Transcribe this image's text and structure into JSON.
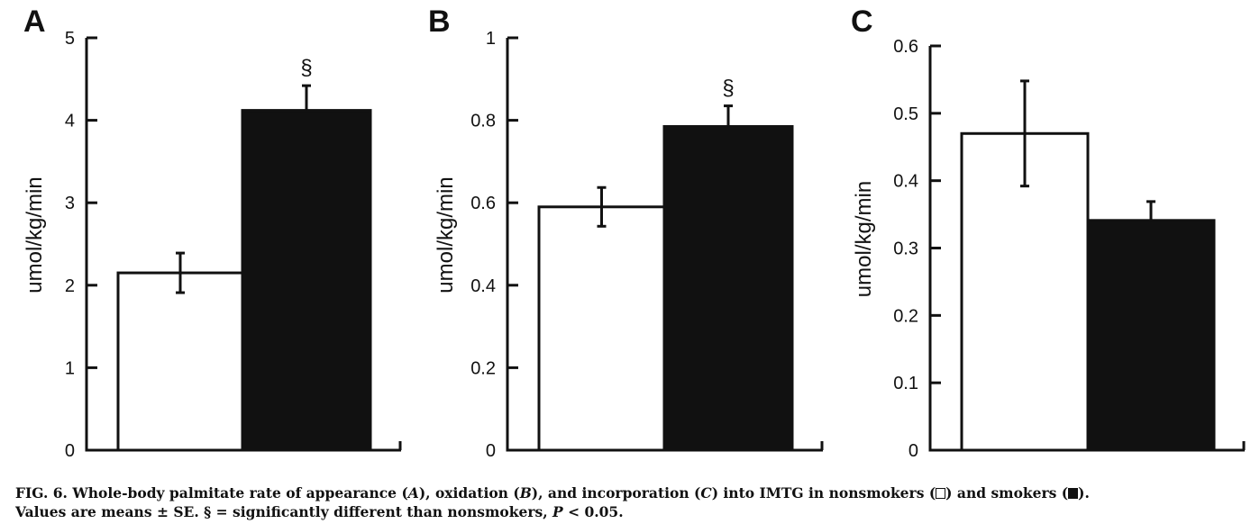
{
  "colors": {
    "nonsmokers": "#ffffff",
    "smokers": "#111111",
    "ink": "#111111"
  },
  "chart_data": [
    {
      "type": "bar",
      "panel_label": "A",
      "categories": [
        "nonsmokers",
        "smokers"
      ],
      "values": [
        2.15,
        4.12
      ],
      "errors": [
        0.24,
        0.3
      ],
      "significance": [
        "",
        "§"
      ],
      "ylabel": "umol/kg/min",
      "ylim": [
        0,
        5
      ],
      "yticks": [
        0,
        1,
        2,
        3,
        4,
        5
      ],
      "ytick_labels": [
        "0",
        "1",
        "2",
        "3",
        "4",
        "5"
      ]
    },
    {
      "type": "bar",
      "panel_label": "B",
      "categories": [
        "nonsmokers",
        "smokers"
      ],
      "values": [
        0.59,
        0.785
      ],
      "errors": [
        0.047,
        0.05
      ],
      "significance": [
        "",
        "§"
      ],
      "ylabel": "umol/kg/min",
      "ylim": [
        0,
        1
      ],
      "yticks": [
        0,
        0.2,
        0.4,
        0.6,
        0.8,
        1
      ],
      "ytick_labels": [
        "0",
        "0.2",
        "0.4",
        "0.6",
        "0.8",
        "1"
      ]
    },
    {
      "type": "bar",
      "panel_label": "C",
      "categories": [
        "nonsmokers",
        "smokers"
      ],
      "values": [
        0.47,
        0.341
      ],
      "errors": [
        0.078,
        0.028
      ],
      "significance": [
        "",
        ""
      ],
      "ylabel": "umol/kg/min",
      "ylim": [
        0,
        0.6
      ],
      "yticks": [
        0,
        0.1,
        0.2,
        0.3,
        0.4,
        0.5,
        0.6
      ],
      "ytick_labels": [
        "0",
        "0.1",
        "0.2",
        "0.3",
        "0.4",
        "0.5",
        "0.6"
      ]
    }
  ],
  "caption": {
    "fig_label": "FIG. 6.",
    "t1": " Whole-body palmitate rate of appearance (",
    "a": "A",
    "t2": "), oxidation (",
    "b": "B",
    "t3": "), and incorporation (",
    "c": "C",
    "t4": ") into IMTG in nonsmokers (",
    "t5": ") and smokers (",
    "t6": ").",
    "line2a": "Values are means ± SE. § = significantly different than nonsmokers, ",
    "p": "P",
    "line2b": " < 0.05."
  }
}
